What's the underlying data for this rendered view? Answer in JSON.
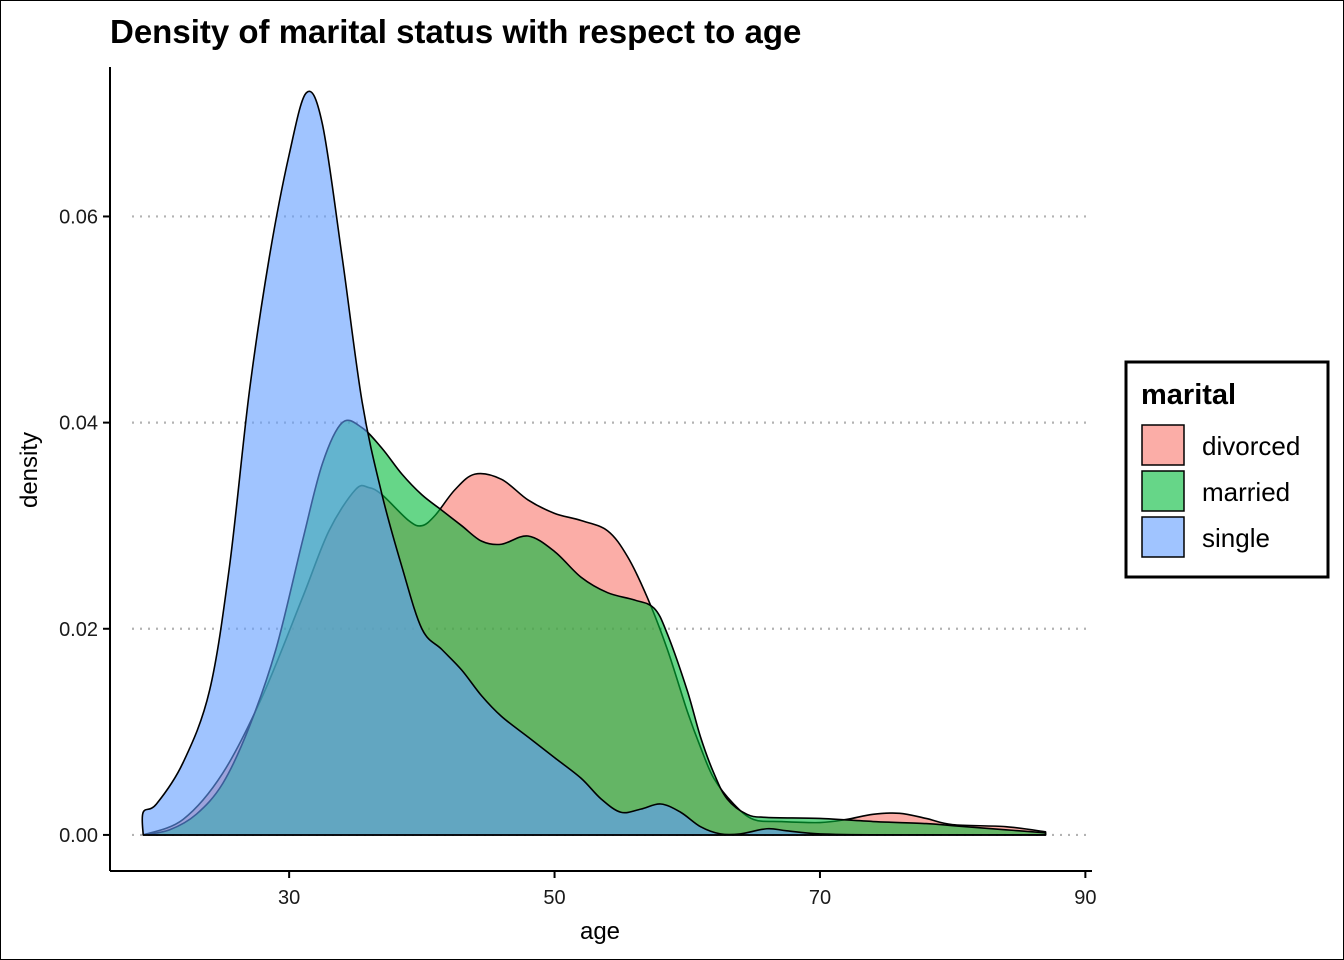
{
  "chart_data": {
    "type": "area",
    "subtype": "density",
    "title": "Density of marital status with respect to age",
    "xlabel": "age",
    "ylabel": "density",
    "xlim": [
      16.5,
      90.5
    ],
    "ylim": [
      -0.0035,
      0.0745
    ],
    "x_ticks": [
      30,
      50,
      70,
      90
    ],
    "y_ticks": [
      0.0,
      0.02,
      0.04,
      0.06
    ],
    "y_tick_labels": [
      "0.00",
      "0.02",
      "0.04",
      "0.06"
    ],
    "grid": "horizontal dotted",
    "legend": {
      "title": "marital",
      "position": "right"
    },
    "series": [
      {
        "name": "divorced",
        "color": "#F8766D",
        "points": [
          [
            19.0,
            0.0
          ],
          [
            22.0,
            0.0015
          ],
          [
            25.0,
            0.006
          ],
          [
            28.0,
            0.0135
          ],
          [
            31.0,
            0.023
          ],
          [
            33.0,
            0.0295
          ],
          [
            35.0,
            0.0335
          ],
          [
            36.0,
            0.0337
          ],
          [
            37.0,
            0.033
          ],
          [
            39.0,
            0.0305
          ],
          [
            40.0,
            0.03
          ],
          [
            41.0,
            0.031
          ],
          [
            42.5,
            0.0335
          ],
          [
            44.0,
            0.035
          ],
          [
            46.0,
            0.0345
          ],
          [
            48.0,
            0.0325
          ],
          [
            50.0,
            0.0312
          ],
          [
            52.0,
            0.0305
          ],
          [
            54.0,
            0.0295
          ],
          [
            55.5,
            0.027
          ],
          [
            57.0,
            0.023
          ],
          [
            58.5,
            0.018
          ],
          [
            60.0,
            0.012
          ],
          [
            61.0,
            0.0085
          ],
          [
            62.0,
            0.0055
          ],
          [
            63.5,
            0.003
          ],
          [
            65.0,
            0.0015
          ],
          [
            67.0,
            0.0013
          ],
          [
            70.0,
            0.0012
          ],
          [
            72.0,
            0.0015
          ],
          [
            74.0,
            0.002
          ],
          [
            76.0,
            0.0021
          ],
          [
            78.0,
            0.0016
          ],
          [
            80.0,
            0.001
          ],
          [
            84.0,
            0.0008
          ],
          [
            87.0,
            0.0003
          ]
        ]
      },
      {
        "name": "married",
        "color": "#00BA38",
        "points": [
          [
            19.0,
            0.0
          ],
          [
            21.0,
            0.0005
          ],
          [
            23.0,
            0.002
          ],
          [
            25.0,
            0.005
          ],
          [
            27.0,
            0.0105
          ],
          [
            29.0,
            0.018
          ],
          [
            31.0,
            0.0285
          ],
          [
            32.5,
            0.036
          ],
          [
            34.0,
            0.04
          ],
          [
            35.5,
            0.0395
          ],
          [
            37.0,
            0.0375
          ],
          [
            38.5,
            0.035
          ],
          [
            40.0,
            0.033
          ],
          [
            41.5,
            0.0315
          ],
          [
            43.0,
            0.03
          ],
          [
            44.5,
            0.0285
          ],
          [
            46.0,
            0.0282
          ],
          [
            48.0,
            0.029
          ],
          [
            50.0,
            0.0275
          ],
          [
            52.0,
            0.025
          ],
          [
            54.0,
            0.0235
          ],
          [
            56.0,
            0.0228
          ],
          [
            57.5,
            0.022
          ],
          [
            58.5,
            0.0195
          ],
          [
            60.0,
            0.014
          ],
          [
            61.0,
            0.0095
          ],
          [
            62.0,
            0.006
          ],
          [
            63.0,
            0.0035
          ],
          [
            64.5,
            0.002
          ],
          [
            66.0,
            0.0017
          ],
          [
            70.0,
            0.0016
          ],
          [
            74.0,
            0.0013
          ],
          [
            78.0,
            0.0011
          ],
          [
            80.0,
            0.0009
          ],
          [
            84.0,
            0.0005
          ],
          [
            87.0,
            0.0002
          ]
        ]
      },
      {
        "name": "single",
        "color": "#619CFF",
        "points": [
          [
            19.0,
            0.0
          ],
          [
            19.0,
            0.0022
          ],
          [
            20.0,
            0.003
          ],
          [
            22.0,
            0.007
          ],
          [
            24.0,
            0.014
          ],
          [
            25.5,
            0.026
          ],
          [
            27.0,
            0.043
          ],
          [
            28.5,
            0.056
          ],
          [
            30.0,
            0.066
          ],
          [
            31.3,
            0.072
          ],
          [
            32.5,
            0.069
          ],
          [
            34.0,
            0.056
          ],
          [
            35.5,
            0.042
          ],
          [
            37.0,
            0.033
          ],
          [
            38.5,
            0.026
          ],
          [
            40.0,
            0.02
          ],
          [
            41.5,
            0.018
          ],
          [
            43.0,
            0.016
          ],
          [
            44.5,
            0.0135
          ],
          [
            46.0,
            0.0115
          ],
          [
            48.0,
            0.0095
          ],
          [
            50.0,
            0.0075
          ],
          [
            52.0,
            0.0055
          ],
          [
            53.5,
            0.0035
          ],
          [
            55.0,
            0.0022
          ],
          [
            56.5,
            0.0025
          ],
          [
            58.0,
            0.003
          ],
          [
            59.5,
            0.0022
          ],
          [
            61.0,
            0.0008
          ],
          [
            62.5,
            0.0001
          ],
          [
            64.0,
            0.0001
          ],
          [
            66.0,
            0.0006
          ],
          [
            67.5,
            0.0004
          ],
          [
            70.0,
            0.0001
          ],
          [
            75.0,
            0.0
          ],
          [
            80.0,
            0.0
          ],
          [
            87.0,
            0.0
          ]
        ]
      }
    ]
  }
}
